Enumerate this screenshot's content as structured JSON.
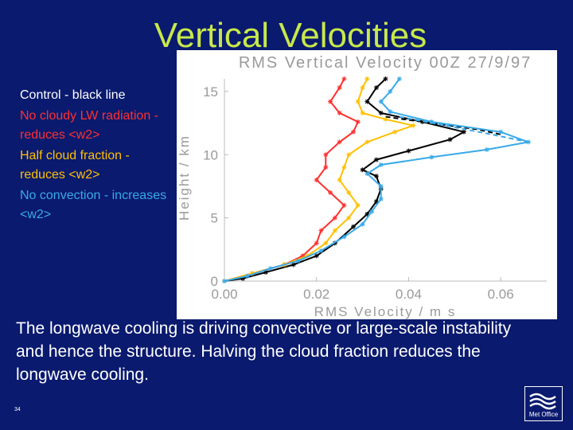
{
  "slide": {
    "title": "Vertical Velocities",
    "legend": [
      {
        "text": "Control - black line",
        "color": "#ffffff"
      },
      {
        "text": "No cloudy LW radiation - reduces <w2>",
        "color": "#ff3030"
      },
      {
        "text": "Half cloud fraction - reduces <w2>",
        "color": "#ffc000"
      },
      {
        "text": "No convection - increases <w2>",
        "color": "#39a9e8"
      }
    ],
    "body_text": "The longwave cooling is driving convective or large-scale instability and hence the structure. Halving the cloud fraction reduces the longwave cooling.",
    "slide_number": "34",
    "logo_text": "Met Office"
  },
  "chart_data": {
    "type": "line",
    "title": "RMS Vertical Velocity 00Z 27/9/97",
    "xlabel": "RMS Velocity / m s",
    "ylabel": "Height / km",
    "xlim": [
      0.0,
      0.07
    ],
    "ylim": [
      0,
      16
    ],
    "xticks": [
      "0.00",
      "0.02",
      "0.04",
      "0.06"
    ],
    "yticks": [
      "0",
      "5",
      "10",
      "15"
    ],
    "series": [
      {
        "color": "#000000",
        "style": "solid",
        "points": [
          [
            0.0,
            0.0
          ],
          [
            0.004,
            0.2
          ],
          [
            0.009,
            0.7
          ],
          [
            0.015,
            1.3
          ],
          [
            0.02,
            2.0
          ],
          [
            0.024,
            3.0
          ],
          [
            0.028,
            4.3
          ],
          [
            0.031,
            5.3
          ],
          [
            0.033,
            6.3
          ],
          [
            0.034,
            7.3
          ],
          [
            0.033,
            8.3
          ],
          [
            0.03,
            8.8
          ],
          [
            0.033,
            9.6
          ],
          [
            0.04,
            10.3
          ],
          [
            0.049,
            11.2
          ],
          [
            0.052,
            11.8
          ],
          [
            0.043,
            12.6
          ],
          [
            0.034,
            13.3
          ],
          [
            0.031,
            14.2
          ],
          [
            0.033,
            15.3
          ],
          [
            0.035,
            16.0
          ]
        ]
      },
      {
        "color": "#000000",
        "style": "dashed",
        "points": [
          [
            0.035,
            13.0
          ],
          [
            0.045,
            12.5
          ],
          [
            0.055,
            12.0
          ],
          [
            0.06,
            11.6
          ]
        ]
      },
      {
        "color": "#ff3030",
        "style": "solid",
        "points": [
          [
            0.0,
            0.0
          ],
          [
            0.006,
            0.6
          ],
          [
            0.013,
            1.3
          ],
          [
            0.017,
            2.0
          ],
          [
            0.02,
            3.0
          ],
          [
            0.021,
            4.0
          ],
          [
            0.024,
            5.0
          ],
          [
            0.026,
            6.0
          ],
          [
            0.023,
            7.0
          ],
          [
            0.02,
            8.0
          ],
          [
            0.022,
            9.0
          ],
          [
            0.022,
            10.0
          ],
          [
            0.025,
            11.0
          ],
          [
            0.028,
            11.8
          ],
          [
            0.029,
            12.6
          ],
          [
            0.025,
            13.3
          ],
          [
            0.023,
            14.2
          ],
          [
            0.025,
            15.3
          ],
          [
            0.026,
            16.0
          ]
        ]
      },
      {
        "color": "#ffc000",
        "style": "solid",
        "points": [
          [
            0.0,
            0.0
          ],
          [
            0.006,
            0.6
          ],
          [
            0.013,
            1.3
          ],
          [
            0.018,
            2.0
          ],
          [
            0.022,
            3.0
          ],
          [
            0.024,
            4.0
          ],
          [
            0.027,
            5.0
          ],
          [
            0.029,
            6.0
          ],
          [
            0.027,
            7.0
          ],
          [
            0.025,
            8.0
          ],
          [
            0.026,
            9.0
          ],
          [
            0.027,
            10.0
          ],
          [
            0.031,
            11.0
          ],
          [
            0.037,
            11.8
          ],
          [
            0.041,
            12.3
          ],
          [
            0.035,
            12.8
          ],
          [
            0.03,
            13.3
          ],
          [
            0.029,
            14.2
          ],
          [
            0.03,
            15.3
          ],
          [
            0.031,
            16.0
          ]
        ]
      },
      {
        "color": "#39a9e8",
        "style": "solid",
        "points": [
          [
            0.0,
            0.0
          ],
          [
            0.005,
            0.4
          ],
          [
            0.01,
            1.0
          ],
          [
            0.016,
            1.6
          ],
          [
            0.021,
            2.4
          ],
          [
            0.026,
            3.5
          ],
          [
            0.03,
            4.5
          ],
          [
            0.032,
            5.5
          ],
          [
            0.034,
            6.5
          ],
          [
            0.034,
            7.5
          ],
          [
            0.031,
            8.5
          ],
          [
            0.034,
            9.2
          ],
          [
            0.045,
            9.8
          ],
          [
            0.057,
            10.4
          ],
          [
            0.066,
            11.0
          ],
          [
            0.06,
            11.8
          ],
          [
            0.045,
            12.6
          ],
          [
            0.036,
            13.4
          ],
          [
            0.034,
            14.2
          ],
          [
            0.036,
            15.0
          ],
          [
            0.038,
            16.0
          ]
        ]
      },
      {
        "color": "#39a9e8",
        "style": "dashed",
        "points": [
          [
            0.038,
            13.0
          ],
          [
            0.048,
            12.3
          ],
          [
            0.058,
            11.6
          ],
          [
            0.066,
            11.0
          ]
        ]
      }
    ]
  }
}
